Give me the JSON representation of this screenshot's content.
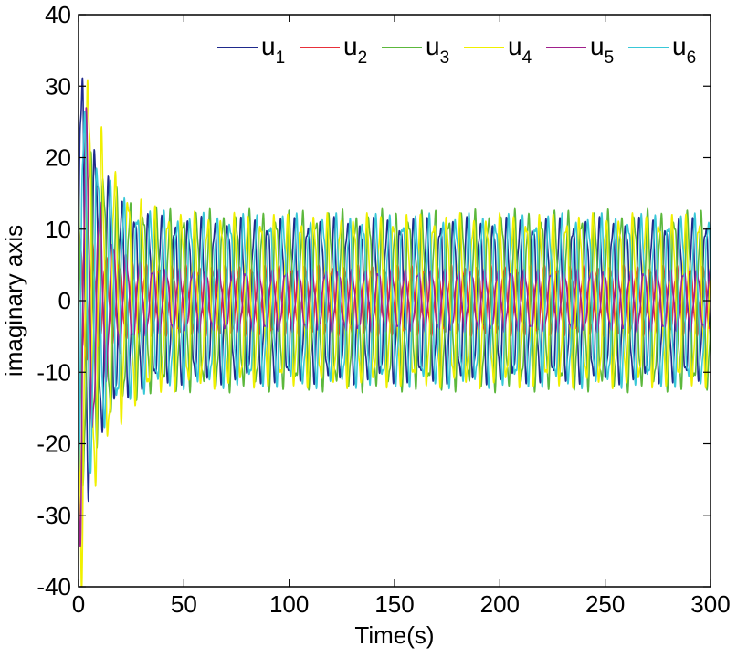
{
  "chart_data": {
    "type": "line",
    "title": "",
    "xlabel": "Time(s)",
    "ylabel": "imaginary axis",
    "xlim": [
      0,
      300
    ],
    "ylim": [
      -40,
      40
    ],
    "x_ticks": [
      0,
      50,
      100,
      150,
      200,
      250,
      300
    ],
    "y_ticks": [
      -40,
      -30,
      -20,
      -10,
      0,
      10,
      20,
      30,
      40
    ],
    "grid": false,
    "legend_position": "top-right",
    "legend_orientation": "horizontal",
    "oscillation": {
      "period_s": 6.3,
      "transient_until_s": 35
    },
    "series": [
      {
        "name": "u",
        "sub": "1",
        "color": "#1f2a8c",
        "initial_amplitude": 35,
        "steady_amplitude": 10.5,
        "decay_tau": 9,
        "phase": 0.0
      },
      {
        "name": "u",
        "sub": "2",
        "color": "#e8303a",
        "initial_amplitude": 10,
        "steady_amplitude": 4.5,
        "decay_tau": 9,
        "phase": 1.1
      },
      {
        "name": "u",
        "sub": "3",
        "color": "#5cb83c",
        "initial_amplitude": 28,
        "steady_amplitude": 11.5,
        "decay_tau": 10,
        "phase": 2.3
      },
      {
        "name": "u",
        "sub": "4",
        "color": "#f0f000",
        "initial_amplitude": 40,
        "steady_amplitude": 11.0,
        "decay_tau": 11,
        "phase": 3.2
      },
      {
        "name": "u",
        "sub": "5",
        "color": "#a0208c",
        "initial_amplitude": 36,
        "steady_amplitude": 4.0,
        "decay_tau": 8,
        "phase": 4.1
      },
      {
        "name": "u",
        "sub": "6",
        "color": "#39c8d8",
        "initial_amplitude": 30,
        "steady_amplitude": 11.0,
        "decay_tau": 10,
        "phase": 5.2
      }
    ]
  }
}
